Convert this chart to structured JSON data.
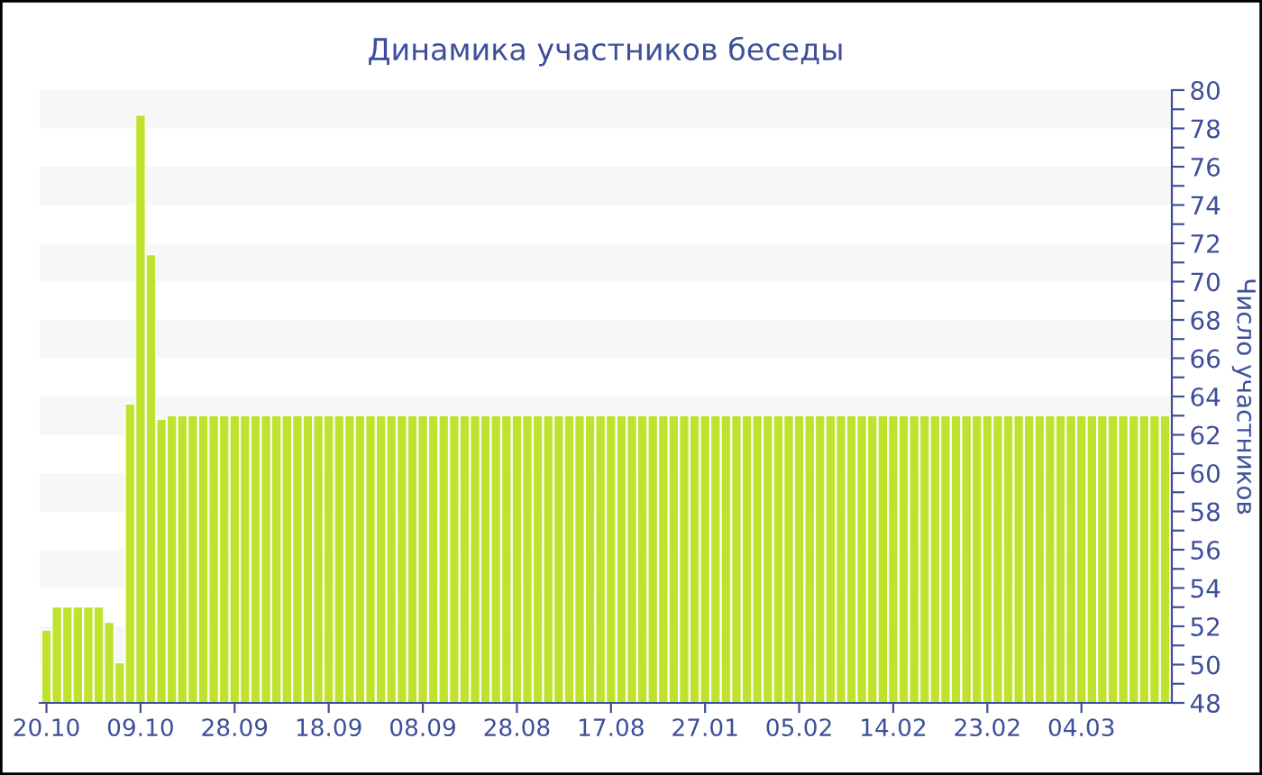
{
  "chart_data": {
    "type": "bar",
    "title": "Динамика участников беседы",
    "ylabel": "Число участников",
    "categories": [
      "20.10",
      null,
      null,
      null,
      null,
      null,
      null,
      null,
      null,
      "09.10",
      null,
      null,
      null,
      null,
      null,
      null,
      null,
      null,
      "28.09",
      null,
      null,
      null,
      null,
      null,
      null,
      null,
      null,
      "18.09",
      null,
      null,
      null,
      null,
      null,
      null,
      null,
      null,
      "08.09",
      null,
      null,
      null,
      null,
      null,
      null,
      null,
      null,
      "28.08",
      null,
      null,
      null,
      null,
      null,
      null,
      null,
      null,
      "17.08",
      null,
      null,
      null,
      null,
      null,
      null,
      null,
      null,
      "27.01",
      null,
      null,
      null,
      null,
      null,
      null,
      null,
      null,
      "05.02",
      null,
      null,
      null,
      null,
      null,
      null,
      null,
      null,
      "14.02",
      null,
      null,
      null,
      null,
      null,
      null,
      null,
      null,
      "23.02",
      null,
      null,
      null,
      null,
      null,
      null,
      null,
      null,
      "04.03",
      null,
      null,
      null,
      null,
      null,
      null,
      null,
      null
    ],
    "values": [
      51.8,
      53,
      53,
      53,
      53,
      53,
      52.2,
      50.1,
      63.6,
      78.7,
      71.4,
      62.8,
      63,
      63,
      63,
      63,
      63,
      63,
      63,
      63,
      63,
      63,
      63,
      63,
      63,
      63,
      63,
      63,
      63,
      63,
      63,
      63,
      63,
      63,
      63,
      63,
      63,
      63,
      63,
      63,
      63,
      63,
      63,
      63,
      63,
      63,
      63,
      63,
      63,
      63,
      63,
      63,
      63,
      63,
      63,
      63,
      63,
      63,
      63,
      63,
      63,
      63,
      63,
      63,
      63,
      63,
      63,
      63,
      63,
      63,
      63,
      63,
      63,
      63,
      63,
      63,
      63,
      63,
      63,
      63,
      63,
      63,
      63,
      63,
      63,
      63,
      63,
      63,
      63,
      63,
      63,
      63,
      63,
      63,
      63,
      63,
      63,
      63,
      63,
      63,
      63,
      63,
      63,
      63,
      63,
      63,
      63,
      63
    ],
    "color": "#bfe22e",
    "ylim": [
      48,
      80
    ],
    "yticks": [
      48,
      {
        "value": 49,
        "label": null
      },
      50,
      {
        "value": 51,
        "label": null
      },
      52,
      {
        "value": 53,
        "label": null
      },
      54,
      {
        "value": 55,
        "label": null
      },
      56,
      {
        "value": 57,
        "label": null
      },
      58,
      {
        "value": 59,
        "label": null
      },
      60,
      {
        "value": 61,
        "label": null
      },
      62,
      {
        "value": 63,
        "label": null
      },
      64,
      {
        "value": 65,
        "label": null
      },
      66,
      {
        "value": 67,
        "label": null
      },
      68,
      {
        "value": 69,
        "label": null
      },
      70,
      {
        "value": 71,
        "label": null
      },
      72,
      {
        "value": 73,
        "label": null
      },
      74,
      {
        "value": 75,
        "label": null
      },
      76,
      {
        "value": 77,
        "label": null
      },
      78,
      {
        "value": 79,
        "label": null
      },
      80
    ],
    "bands": [
      {
        "axis": "y",
        "from": 50,
        "to": 52,
        "color": "#f7f7f7"
      },
      {
        "axis": "y",
        "from": 54,
        "to": 56,
        "color": "#f7f7f7"
      },
      {
        "axis": "y",
        "from": 58,
        "to": 60,
        "color": "#f7f7f7"
      },
      {
        "axis": "y",
        "from": 62,
        "to": 64,
        "color": "#f7f7f7"
      },
      {
        "axis": "y",
        "from": 66,
        "to": 68,
        "color": "#f7f7f7"
      },
      {
        "axis": "y",
        "from": 70,
        "to": 72,
        "color": "#f7f7f7"
      },
      {
        "axis": "y",
        "from": 74,
        "to": 76,
        "color": "#f7f7f7"
      },
      {
        "axis": "y",
        "from": 78,
        "to": 80,
        "color": "#f7f7f7"
      }
    ],
    "grid": false,
    "legend": false
  }
}
